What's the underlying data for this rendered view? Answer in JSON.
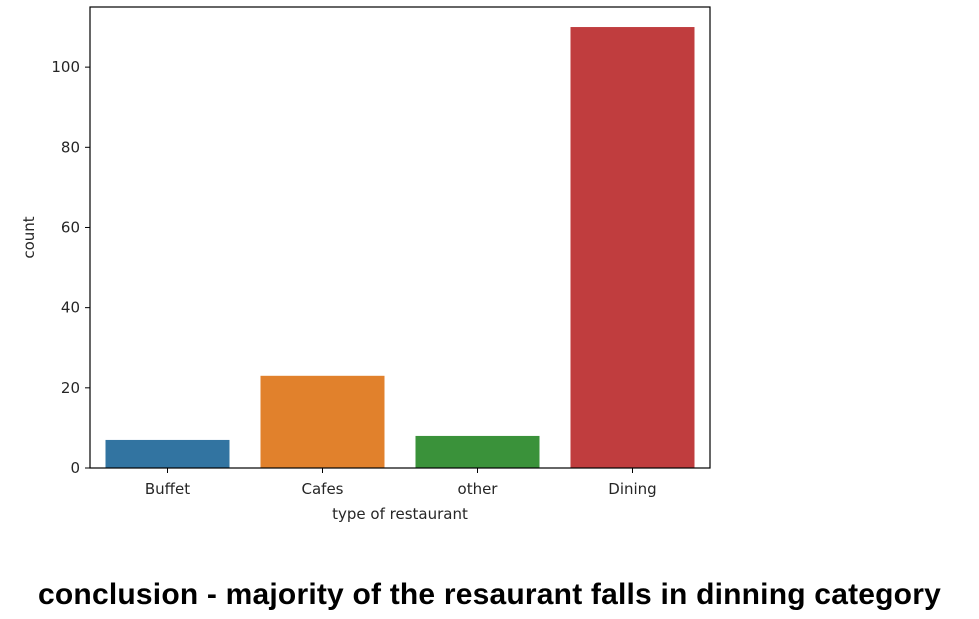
{
  "chart_data": {
    "type": "bar",
    "title": "",
    "xlabel": "type of restaurant",
    "ylabel": "count",
    "categories": [
      "Buffet",
      "Cafes",
      "other",
      "Dining"
    ],
    "values": [
      7,
      23,
      8,
      110
    ],
    "colors": [
      "#3274a1",
      "#e1812c",
      "#3a923a",
      "#c03d3e"
    ],
    "ylim": [
      0,
      115
    ],
    "yticks": [
      "0",
      "20",
      "40",
      "60",
      "80",
      "100"
    ],
    "grid": false,
    "legend": "none"
  },
  "caption": "conclusion - majority of the resaurant falls in dinning category"
}
